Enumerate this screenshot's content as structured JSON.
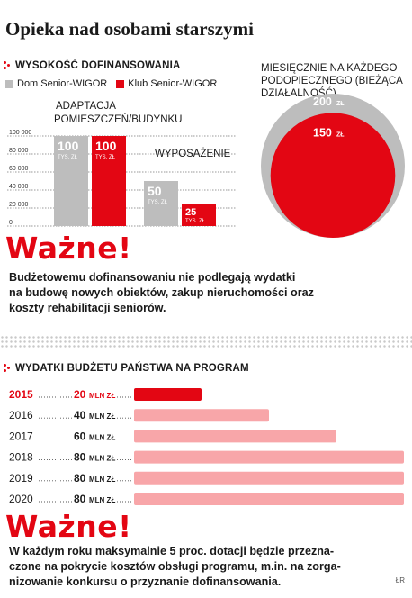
{
  "title": "Opieka nad osobami starszymi",
  "credit": "ŁR",
  "colors": {
    "accent": "#e30613",
    "gray": "#bdbdbd",
    "light_red": "#f8a6a9"
  },
  "important_1": {
    "heading": "Ważne!",
    "lines": [
      "Budżetowemu dofinansowaniu nie podlegają wydatki",
      "na budowę nowych obiektów, zakup nieruchomości oraz",
      "koszty rehabilitacji seniorów."
    ]
  },
  "important_2": {
    "heading": "Ważne!",
    "lines": [
      "W każdym roku maksymalnie 5 proc. dotacji będzie przezna-",
      "czone na pokrycie kosztów obsługi programu, m.in. na zorga-",
      "nizowanie konkursu o przyznanie dofinansowania."
    ]
  },
  "chart_data": [
    {
      "type": "bar",
      "title": "Wysokość dofinansowania",
      "legend": [
        "Dom Senior-WIGOR",
        "Klub Senior-WIGOR"
      ],
      "categories": [
        "ADAPTACJA POMIESZCZEŃ/BUDYNKU",
        "WYPOSAŻENIE"
      ],
      "series": [
        {
          "name": "Dom Senior-WIGOR",
          "values": [
            100000,
            50000
          ],
          "labels": [
            "100",
            "50"
          ],
          "color": "#bdbdbd"
        },
        {
          "name": "Klub Senior-WIGOR",
          "values": [
            100000,
            25000
          ],
          "labels": [
            "100",
            "25"
          ],
          "color": "#e30613"
        }
      ],
      "unit_label": "TYS. ZŁ",
      "y_ticks": [
        "100 000",
        "80 000",
        "60 000",
        "40 000",
        "20 000",
        "0"
      ],
      "y_tick_values": [
        100000,
        80000,
        60000,
        40000,
        20000,
        0
      ],
      "ylim": [
        0,
        100000
      ]
    },
    {
      "type": "area",
      "title": "MIESIĘCZNIE NA KAŻDEGO PODOPIECZNEGO (BIEŻĄCA DZIAŁALNOŚĆ)",
      "title_lines": [
        "MIESIĘCZNIE NA KAŻDEGO",
        "PODOPIECZNEGO (BIEŻĄCA",
        "DZIAŁALNOŚĆ)"
      ],
      "circles": [
        {
          "value": 200,
          "label": "200",
          "unit": "ZŁ",
          "color": "#bdbdbd"
        },
        {
          "value": 150,
          "label": "150",
          "unit": "ZŁ",
          "color": "#e30613"
        }
      ]
    },
    {
      "type": "bar",
      "orientation": "horizontal",
      "title": "Wydatki budżetu państwa na program",
      "categories": [
        "2015",
        "2016",
        "2017",
        "2018",
        "2019",
        "2020"
      ],
      "values": [
        20,
        40,
        60,
        80,
        80,
        80
      ],
      "value_unit": "MLN ZŁ",
      "xlim": [
        0,
        80
      ]
    }
  ]
}
